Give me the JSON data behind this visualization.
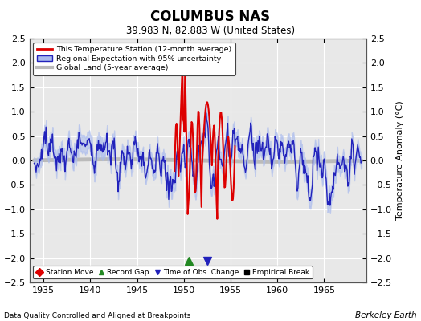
{
  "title": "COLUMBUS NAS",
  "subtitle": "39.983 N, 82.883 W (United States)",
  "xlabel_left": "Data Quality Controlled and Aligned at Breakpoints",
  "xlabel_right": "Berkeley Earth",
  "ylabel_right": "Temperature Anomaly (°C)",
  "xlim": [
    1933.5,
    1969.5
  ],
  "ylim": [
    -2.5,
    2.5
  ],
  "yticks": [
    -2.5,
    -2,
    -1.5,
    -1,
    -0.5,
    0,
    0.5,
    1,
    1.5,
    2,
    2.5
  ],
  "xticks": [
    1935,
    1940,
    1945,
    1950,
    1955,
    1960,
    1965
  ],
  "bg_color": "#ffffff",
  "plot_bg_color": "#e8e8e8",
  "station_color": "#dd0000",
  "regional_color": "#2222bb",
  "regional_fill_color": "#aabbee",
  "global_color": "#bbbbbb",
  "record_gap_x": 1950.5,
  "record_gap_y": -2.05,
  "time_obs_x": 1952.5,
  "time_obs_y": -2.05
}
